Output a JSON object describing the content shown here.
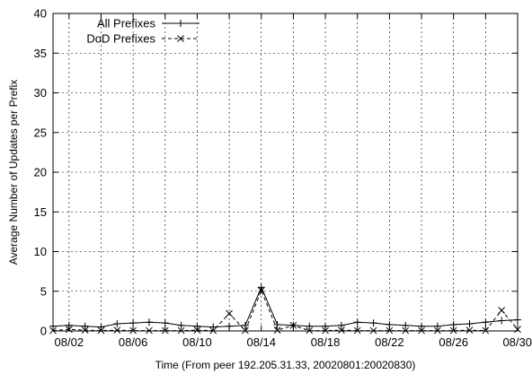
{
  "chart_data": {
    "type": "line",
    "title": "",
    "xlabel": "Time (From peer 192.205.31.33, 20020801:20020830)",
    "ylabel": "Average Number of Updates per Prefix",
    "xlim": [
      1,
      30
    ],
    "ylim": [
      0,
      40
    ],
    "x_ticks": [
      2,
      4,
      6,
      8,
      10,
      12,
      14,
      16,
      18,
      20,
      22,
      24,
      26,
      28,
      30
    ],
    "x_tick_labels": [
      "08/02",
      "08/06",
      "08/10",
      "08/14",
      "08/18",
      "08/22",
      "08/26",
      "08/30"
    ],
    "x_tick_label_days": [
      2,
      6,
      10,
      14,
      18,
      22,
      26,
      30
    ],
    "y_ticks": [
      0,
      5,
      10,
      15,
      20,
      25,
      30,
      35,
      40
    ],
    "grid": true,
    "legend_position": "top-left",
    "x": [
      1,
      2,
      3,
      4,
      5,
      6,
      7,
      8,
      9,
      10,
      11,
      12,
      13,
      14,
      15,
      16,
      17,
      18,
      19,
      20,
      21,
      22,
      23,
      24,
      25,
      26,
      27,
      28,
      29,
      30
    ],
    "series": [
      {
        "name": "All Prefixes",
        "line_style": "solid",
        "marker": "plus",
        "values": [
          0.6,
          0.7,
          0.6,
          0.5,
          0.9,
          1.0,
          1.1,
          1.0,
          0.7,
          0.6,
          0.5,
          0.6,
          0.7,
          5.5,
          0.8,
          0.7,
          0.6,
          0.6,
          0.7,
          1.1,
          1.0,
          0.8,
          0.7,
          0.6,
          0.6,
          0.8,
          0.9,
          1.1,
          1.3,
          1.4
        ]
      },
      {
        "name": "DoD Prefixes",
        "line_style": "dashed",
        "marker": "cross",
        "values": [
          0.05,
          0.2,
          0.1,
          0.05,
          0.1,
          0.05,
          0.05,
          0.05,
          0.05,
          0.1,
          0.05,
          2.2,
          0.05,
          5.1,
          0.1,
          0.7,
          0.05,
          0.05,
          0.1,
          0.05,
          0.05,
          0.05,
          0.05,
          0.05,
          0.05,
          0.05,
          0.1,
          0.05,
          2.6,
          0.2
        ]
      }
    ]
  }
}
